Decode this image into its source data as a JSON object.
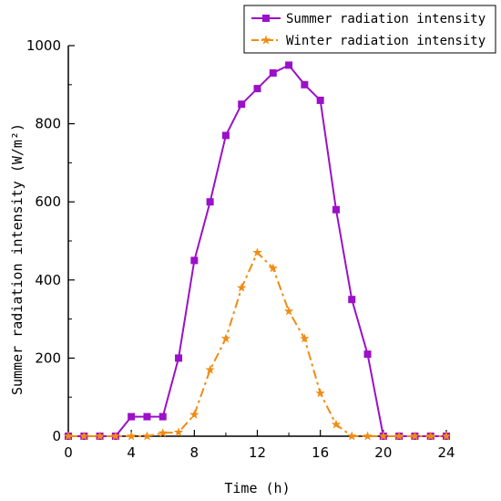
{
  "chart_data": {
    "type": "line",
    "xlabel": "Time (h)",
    "ylabel": "Summer radiation intensity (W/m²)",
    "xlim": [
      0,
      24
    ],
    "ylim": [
      0,
      1000
    ],
    "xticks": [
      "0",
      "4",
      "8",
      "12",
      "16",
      "20",
      "24"
    ],
    "yticks": [
      "0",
      "200",
      "400",
      "600",
      "800",
      "1000"
    ],
    "legend_position": "top-right",
    "grid": false,
    "series": [
      {
        "name": "Summer radiation intensity",
        "color": "#9b10c8",
        "marker": "square",
        "line_style": "solid",
        "points": [
          [
            0,
            0
          ],
          [
            1,
            0
          ],
          [
            2,
            0
          ],
          [
            3,
            0
          ],
          [
            4,
            50
          ],
          [
            5,
            50
          ],
          [
            6,
            50
          ],
          [
            7,
            200
          ],
          [
            8,
            450
          ],
          [
            9,
            600
          ],
          [
            10,
            770
          ],
          [
            11,
            850
          ],
          [
            12,
            890
          ],
          [
            13,
            930
          ],
          [
            14,
            950
          ],
          [
            15,
            900
          ],
          [
            16,
            860
          ],
          [
            17,
            580
          ],
          [
            18,
            350
          ],
          [
            19,
            210
          ],
          [
            20,
            0
          ],
          [
            21,
            0
          ],
          [
            22,
            0
          ],
          [
            23,
            0
          ],
          [
            24,
            0
          ]
        ]
      },
      {
        "name": "Winter radiation intensity",
        "color": "#f08c14",
        "marker": "star",
        "line_style": "dash-dot",
        "points": [
          [
            0,
            0
          ],
          [
            1,
            0
          ],
          [
            2,
            0
          ],
          [
            3,
            0
          ],
          [
            4,
            0
          ],
          [
            5,
            0
          ],
          [
            6,
            8
          ],
          [
            7,
            10
          ],
          [
            8,
            55
          ],
          [
            9,
            170
          ],
          [
            10,
            250
          ],
          [
            11,
            380
          ],
          [
            12,
            470
          ],
          [
            13,
            430
          ],
          [
            14,
            320
          ],
          [
            15,
            250
          ],
          [
            16,
            110
          ],
          [
            17,
            30
          ],
          [
            18,
            0
          ],
          [
            19,
            0
          ],
          [
            20,
            0
          ],
          [
            21,
            0
          ],
          [
            22,
            0
          ],
          [
            23,
            0
          ],
          [
            24,
            0
          ]
        ]
      }
    ]
  }
}
